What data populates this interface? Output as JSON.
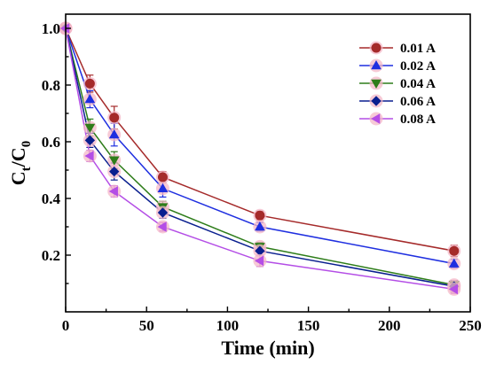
{
  "chart_data": {
    "type": "line",
    "xlabel": "Time (min)",
    "ylabel": {
      "main": "C",
      "sub_t": "t",
      "slash": "/",
      "main2": "C",
      "sub_0": "0"
    },
    "xlim": [
      0,
      250
    ],
    "ylim": [
      0,
      1.05
    ],
    "x_ticks": [
      "0",
      "50",
      "100",
      "150",
      "200",
      "250"
    ],
    "y_ticks": [
      "0.2",
      "0.4",
      "0.6",
      "0.8",
      "1.0"
    ],
    "x_tick_values": [
      0,
      50,
      100,
      150,
      200,
      250
    ],
    "y_tick_values": [
      0.2,
      0.4,
      0.6,
      0.8,
      1.0
    ],
    "grid": false,
    "legend_position": "top-right",
    "x": [
      0,
      15,
      30,
      60,
      120,
      240
    ],
    "series": [
      {
        "name": "0.01 A",
        "color": "#a52a2a",
        "marker": "circle",
        "values": [
          1.0,
          0.805,
          0.685,
          0.475,
          0.34,
          0.215
        ],
        "errors": [
          0.01,
          0.03,
          0.04,
          0.02,
          0.015,
          0.02
        ]
      },
      {
        "name": "0.02 A",
        "color": "#1f2fe0",
        "marker": "triangle-up",
        "values": [
          1.0,
          0.75,
          0.625,
          0.435,
          0.3,
          0.17
        ],
        "errors": [
          0.01,
          0.03,
          0.04,
          0.03,
          0.015,
          0.015
        ]
      },
      {
        "name": "0.04 A",
        "color": "#2e7d1a",
        "marker": "triangle-down",
        "values": [
          1.0,
          0.65,
          0.535,
          0.37,
          0.23,
          0.095
        ],
        "errors": [
          0.01,
          0.03,
          0.03,
          0.02,
          0.015,
          0.015
        ]
      },
      {
        "name": "0.06 A",
        "color": "#0a1f8f",
        "marker": "diamond",
        "values": [
          1.0,
          0.605,
          0.495,
          0.35,
          0.215,
          0.09
        ],
        "errors": [
          0.01,
          0.025,
          0.03,
          0.02,
          0.015,
          0.02
        ]
      },
      {
        "name": "0.08 A",
        "color": "#b44ee6",
        "marker": "triangle-left",
        "values": [
          1.0,
          0.55,
          0.425,
          0.3,
          0.18,
          0.08
        ],
        "errors": [
          0.01,
          0.02,
          0.02,
          0.015,
          0.02,
          0.015
        ]
      }
    ]
  }
}
